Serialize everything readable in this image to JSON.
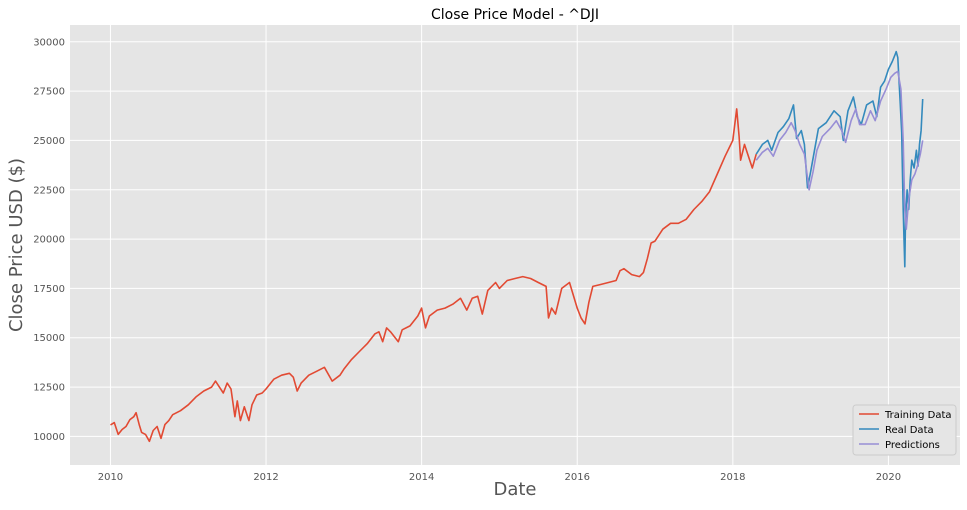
{
  "chart_data": {
    "type": "line",
    "title": "Close Price Model - ^DJI",
    "xlabel": "Date",
    "ylabel": "Close Price USD ($)",
    "xlim": [
      2009.48,
      2020.92
    ],
    "ylim": [
      8550,
      30850
    ],
    "x_ticks": [
      2010,
      2012,
      2014,
      2016,
      2018,
      2020
    ],
    "y_ticks": [
      10000,
      12500,
      15000,
      17500,
      20000,
      22500,
      25000,
      27500,
      30000
    ],
    "grid": true,
    "legend_position": "lower-right",
    "colors": {
      "background": "#e5e5e5",
      "grid": "#ffffff",
      "training": "#e24a33",
      "real": "#348abd",
      "predictions": "#988ed5"
    },
    "series": [
      {
        "name": "Training Data",
        "color": "#e24a33",
        "points": [
          [
            2010.0,
            10580
          ],
          [
            2010.05,
            10700
          ],
          [
            2010.1,
            10100
          ],
          [
            2010.15,
            10350
          ],
          [
            2010.2,
            10500
          ],
          [
            2010.25,
            10850
          ],
          [
            2010.3,
            11000
          ],
          [
            2010.33,
            11200
          ],
          [
            2010.37,
            10600
          ],
          [
            2010.4,
            10200
          ],
          [
            2010.45,
            10100
          ],
          [
            2010.5,
            9750
          ],
          [
            2010.55,
            10300
          ],
          [
            2010.6,
            10500
          ],
          [
            2010.65,
            9900
          ],
          [
            2010.7,
            10600
          ],
          [
            2010.75,
            10800
          ],
          [
            2010.8,
            11100
          ],
          [
            2010.9,
            11300
          ],
          [
            2011.0,
            11600
          ],
          [
            2011.1,
            12000
          ],
          [
            2011.2,
            12300
          ],
          [
            2011.3,
            12500
          ],
          [
            2011.35,
            12800
          ],
          [
            2011.4,
            12500
          ],
          [
            2011.45,
            12200
          ],
          [
            2011.5,
            12700
          ],
          [
            2011.55,
            12400
          ],
          [
            2011.6,
            11000
          ],
          [
            2011.63,
            11800
          ],
          [
            2011.67,
            10800
          ],
          [
            2011.72,
            11500
          ],
          [
            2011.78,
            10800
          ],
          [
            2011.82,
            11600
          ],
          [
            2011.88,
            12100
          ],
          [
            2011.95,
            12200
          ],
          [
            2012.0,
            12400
          ],
          [
            2012.1,
            12900
          ],
          [
            2012.2,
            13100
          ],
          [
            2012.3,
            13200
          ],
          [
            2012.35,
            13000
          ],
          [
            2012.4,
            12300
          ],
          [
            2012.45,
            12700
          ],
          [
            2012.5,
            12900
          ],
          [
            2012.55,
            13100
          ],
          [
            2012.65,
            13300
          ],
          [
            2012.75,
            13500
          ],
          [
            2012.85,
            12800
          ],
          [
            2012.95,
            13100
          ],
          [
            2013.0,
            13400
          ],
          [
            2013.1,
            13900
          ],
          [
            2013.2,
            14300
          ],
          [
            2013.3,
            14700
          ],
          [
            2013.4,
            15200
          ],
          [
            2013.45,
            15300
          ],
          [
            2013.5,
            14800
          ],
          [
            2013.55,
            15500
          ],
          [
            2013.6,
            15300
          ],
          [
            2013.7,
            14800
          ],
          [
            2013.75,
            15400
          ],
          [
            2013.85,
            15600
          ],
          [
            2013.95,
            16100
          ],
          [
            2014.0,
            16500
          ],
          [
            2014.05,
            15500
          ],
          [
            2014.1,
            16100
          ],
          [
            2014.2,
            16400
          ],
          [
            2014.3,
            16500
          ],
          [
            2014.4,
            16700
          ],
          [
            2014.5,
            17000
          ],
          [
            2014.58,
            16400
          ],
          [
            2014.65,
            17000
          ],
          [
            2014.72,
            17100
          ],
          [
            2014.78,
            16200
          ],
          [
            2014.85,
            17400
          ],
          [
            2014.95,
            17800
          ],
          [
            2015.0,
            17500
          ],
          [
            2015.1,
            17900
          ],
          [
            2015.2,
            18000
          ],
          [
            2015.3,
            18100
          ],
          [
            2015.4,
            18000
          ],
          [
            2015.5,
            17800
          ],
          [
            2015.6,
            17600
          ],
          [
            2015.63,
            16000
          ],
          [
            2015.67,
            16500
          ],
          [
            2015.72,
            16200
          ],
          [
            2015.8,
            17500
          ],
          [
            2015.9,
            17800
          ],
          [
            2016.0,
            16500
          ],
          [
            2016.05,
            16000
          ],
          [
            2016.1,
            15700
          ],
          [
            2016.15,
            16800
          ],
          [
            2016.2,
            17600
          ],
          [
            2016.3,
            17700
          ],
          [
            2016.4,
            17800
          ],
          [
            2016.5,
            17900
          ],
          [
            2016.55,
            18400
          ],
          [
            2016.6,
            18500
          ],
          [
            2016.7,
            18200
          ],
          [
            2016.8,
            18100
          ],
          [
            2016.85,
            18300
          ],
          [
            2016.9,
            19000
          ],
          [
            2016.95,
            19800
          ],
          [
            2017.0,
            19900
          ],
          [
            2017.1,
            20500
          ],
          [
            2017.2,
            20800
          ],
          [
            2017.3,
            20800
          ],
          [
            2017.4,
            21000
          ],
          [
            2017.5,
            21500
          ],
          [
            2017.6,
            21900
          ],
          [
            2017.7,
            22400
          ],
          [
            2017.8,
            23300
          ],
          [
            2017.9,
            24200
          ],
          [
            2018.0,
            25000
          ],
          [
            2018.05,
            26600
          ],
          [
            2018.08,
            25200
          ],
          [
            2018.1,
            24000
          ],
          [
            2018.15,
            24800
          ],
          [
            2018.2,
            24200
          ],
          [
            2018.25,
            23600
          ],
          [
            2018.3,
            24300
          ]
        ]
      },
      {
        "name": "Real Data",
        "color": "#348abd",
        "points": [
          [
            2018.3,
            24300
          ],
          [
            2018.38,
            24800
          ],
          [
            2018.45,
            25000
          ],
          [
            2018.5,
            24500
          ],
          [
            2018.58,
            25400
          ],
          [
            2018.65,
            25700
          ],
          [
            2018.72,
            26100
          ],
          [
            2018.78,
            26800
          ],
          [
            2018.82,
            25100
          ],
          [
            2018.88,
            25500
          ],
          [
            2018.92,
            24800
          ],
          [
            2018.96,
            22600
          ],
          [
            2019.0,
            23400
          ],
          [
            2019.05,
            24500
          ],
          [
            2019.1,
            25600
          ],
          [
            2019.2,
            25900
          ],
          [
            2019.3,
            26500
          ],
          [
            2019.38,
            26200
          ],
          [
            2019.42,
            25000
          ],
          [
            2019.48,
            26500
          ],
          [
            2019.55,
            27200
          ],
          [
            2019.6,
            26200
          ],
          [
            2019.65,
            25800
          ],
          [
            2019.72,
            26800
          ],
          [
            2019.8,
            27000
          ],
          [
            2019.85,
            26200
          ],
          [
            2019.9,
            27700
          ],
          [
            2019.95,
            28000
          ],
          [
            2020.0,
            28600
          ],
          [
            2020.05,
            29000
          ],
          [
            2020.08,
            29300
          ],
          [
            2020.1,
            29500
          ],
          [
            2020.12,
            29200
          ],
          [
            2020.15,
            27000
          ],
          [
            2020.17,
            25400
          ],
          [
            2020.18,
            23500
          ],
          [
            2020.19,
            21500
          ],
          [
            2020.2,
            20000
          ],
          [
            2020.21,
            18600
          ],
          [
            2020.22,
            21000
          ],
          [
            2020.24,
            22500
          ],
          [
            2020.26,
            21500
          ],
          [
            2020.28,
            23000
          ],
          [
            2020.3,
            24000
          ],
          [
            2020.33,
            23600
          ],
          [
            2020.36,
            24500
          ],
          [
            2020.38,
            23700
          ],
          [
            2020.4,
            24800
          ],
          [
            2020.42,
            25500
          ],
          [
            2020.44,
            27100
          ]
        ]
      },
      {
        "name": "Predictions",
        "color": "#988ed5",
        "points": [
          [
            2018.3,
            24000
          ],
          [
            2018.38,
            24400
          ],
          [
            2018.45,
            24600
          ],
          [
            2018.52,
            24200
          ],
          [
            2018.6,
            25000
          ],
          [
            2018.68,
            25400
          ],
          [
            2018.75,
            25900
          ],
          [
            2018.8,
            25500
          ],
          [
            2018.86,
            24800
          ],
          [
            2018.92,
            24300
          ],
          [
            2018.98,
            22500
          ],
          [
            2019.03,
            23400
          ],
          [
            2019.08,
            24500
          ],
          [
            2019.15,
            25200
          ],
          [
            2019.25,
            25600
          ],
          [
            2019.33,
            26000
          ],
          [
            2019.4,
            25500
          ],
          [
            2019.45,
            24900
          ],
          [
            2019.52,
            26000
          ],
          [
            2019.58,
            26600
          ],
          [
            2019.63,
            25800
          ],
          [
            2019.7,
            25800
          ],
          [
            2019.77,
            26500
          ],
          [
            2019.83,
            26000
          ],
          [
            2019.9,
            27000
          ],
          [
            2019.97,
            27600
          ],
          [
            2020.03,
            28200
          ],
          [
            2020.08,
            28400
          ],
          [
            2020.12,
            28500
          ],
          [
            2020.16,
            27600
          ],
          [
            2020.19,
            25000
          ],
          [
            2020.21,
            21500
          ],
          [
            2020.23,
            20500
          ],
          [
            2020.26,
            22000
          ],
          [
            2020.3,
            23000
          ],
          [
            2020.34,
            23300
          ],
          [
            2020.38,
            23800
          ],
          [
            2020.41,
            24300
          ],
          [
            2020.44,
            25000
          ]
        ]
      }
    ]
  }
}
